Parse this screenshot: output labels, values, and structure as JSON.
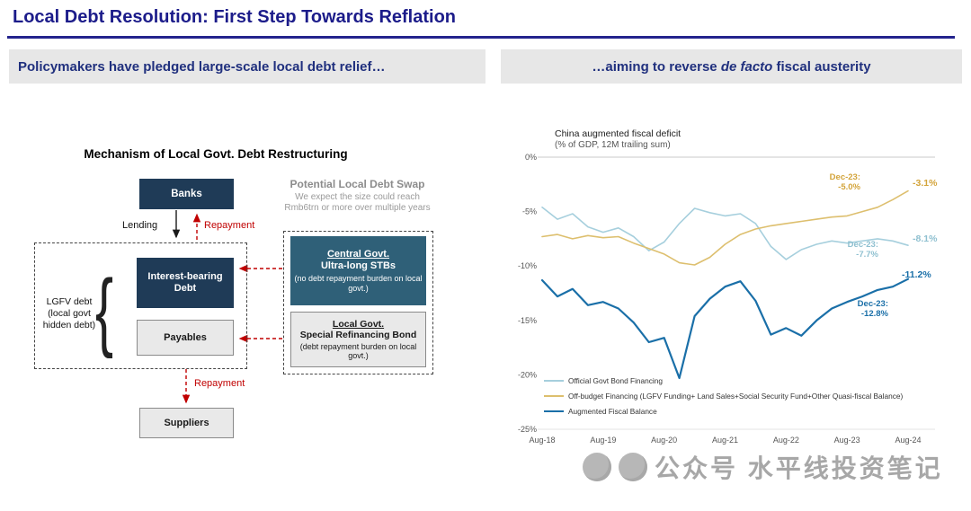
{
  "slide": {
    "title": "Local Debt Resolution: First Step Towards Reflation",
    "left_header": "Policymakers have pledged large-scale local debt relief…",
    "right_header": {
      "prefix": "…aiming to reverse ",
      "italic": "de facto",
      "suffix": " fiscal austerity"
    }
  },
  "diagram": {
    "title": "Mechanism of Local Govt. Debt Restructuring",
    "banks_label": "Banks",
    "lending_label": "Lending",
    "repayment_top_label": "Repayment",
    "interest_bearing_line1": "Interest-bearing",
    "interest_bearing_line2": "Debt",
    "payables_label": "Payables",
    "lgfv_line1": "LGFV debt",
    "lgfv_line2": "(local govt",
    "lgfv_line3": "hidden debt)",
    "repayment_bottom_label": "Repayment",
    "suppliers_label": "Suppliers",
    "swap_title": "Potential Local Debt Swap",
    "swap_note_line1": "We expect the size could reach",
    "swap_note_line2": "Rmb6trn or more over multiple years",
    "central_box": {
      "title": "Central Govt.",
      "subtitle": "Ultra-long STBs",
      "note": "(no debt repayment burden on local govt.)"
    },
    "local_box": {
      "title": "Local Govt.",
      "subtitle": "Special Refinancing Bond",
      "note": "(debt repayment burden on local govt.)"
    }
  },
  "chart": {
    "title_line1": "China augmented fiscal deficit",
    "title_line2": "(% of GDP, 12M trailing sum)",
    "annotations": {
      "offbudget_dec_label": "Dec-23:",
      "offbudget_dec_value": "-5.0%",
      "offbudget_end_value": "-3.1%",
      "official_dec_label": "Dec-23:",
      "official_dec_value": "-7.7%",
      "official_end_value": "-8.1%",
      "augmented_dec_label": "Dec-23:",
      "augmented_dec_value": "-12.8%",
      "augmented_end_value": "-11.2%"
    }
  },
  "chart_data": {
    "type": "line",
    "title": "China augmented fiscal deficit (% of GDP, 12M trailing sum)",
    "xlabel": "",
    "ylabel": "% of GDP, 12M trailing sum",
    "ylim": [
      -25,
      0
    ],
    "yticks": [
      0,
      -5,
      -10,
      -15,
      -20,
      -25
    ],
    "ytick_labels": [
      "0%",
      "-5%",
      "-10%",
      "-15%",
      "-20%",
      "-25%"
    ],
    "xtick_labels": [
      "Aug-18",
      "Aug-19",
      "Aug-20",
      "Aug-21",
      "Aug-22",
      "Aug-23",
      "Aug-24"
    ],
    "x_unit": "years since Aug-18, quarterly",
    "grid": false,
    "legend_position": "bottom-left inside plot",
    "x": [
      0,
      0.25,
      0.5,
      0.75,
      1,
      1.25,
      1.5,
      1.75,
      2,
      2.25,
      2.5,
      2.75,
      3,
      3.25,
      3.5,
      3.75,
      4,
      4.25,
      4.5,
      4.75,
      5,
      5.25,
      5.5,
      5.75,
      6
    ],
    "series": [
      {
        "name": "Official Govt Bond Financing",
        "color": "#a6cfdd",
        "width": 1.6,
        "values": [
          -4.6,
          -5.7,
          -5.2,
          -6.4,
          -6.9,
          -6.5,
          -7.3,
          -8.6,
          -7.8,
          -6.1,
          -4.7,
          -5.1,
          -5.4,
          -5.2,
          -6.1,
          -8.2,
          -9.4,
          -8.5,
          -8.0,
          -7.7,
          -7.9,
          -7.7,
          -7.5,
          -7.7,
          -8.1
        ]
      },
      {
        "name": "Off-budget Financing (LGFV Funding+ Land Sales+Social Security Fund+Other Quasi-fiscal Balance)",
        "color": "#ddbf6e",
        "width": 1.6,
        "values": [
          -7.3,
          -7.1,
          -7.5,
          -7.2,
          -7.4,
          -7.3,
          -7.9,
          -8.4,
          -8.9,
          -9.7,
          -9.9,
          -9.2,
          -8.0,
          -7.1,
          -6.6,
          -6.3,
          -6.1,
          -5.9,
          -5.7,
          -5.5,
          -5.4,
          -5.0,
          -4.6,
          -3.9,
          -3.1
        ]
      },
      {
        "name": "Augmented Fiscal Balance",
        "color": "#1a6fa8",
        "width": 2.2,
        "values": [
          -11.3,
          -12.8,
          -12.1,
          -13.6,
          -13.3,
          -13.9,
          -15.2,
          -17.0,
          -16.6,
          -20.3,
          -14.6,
          -13.0,
          -11.9,
          -11.4,
          -13.2,
          -16.3,
          -15.7,
          -16.4,
          -15.0,
          -13.9,
          -13.3,
          -12.8,
          -12.2,
          -11.9,
          -11.2
        ]
      }
    ],
    "key_points": {
      "official_dec23": -7.7,
      "official_aug24": -8.1,
      "offbudget_dec23": -5.0,
      "offbudget_aug24": -3.1,
      "augmented_dec23": -12.8,
      "augmented_aug24": -11.2
    }
  },
  "watermark": {
    "text": "公众号 水平线投资笔记"
  },
  "colors": {
    "title_navy": "#1c1c8a",
    "header_bg": "#e7e7e7",
    "header_text": "#20307e",
    "box_navy": "#1f3b57",
    "box_steel": "#2f6078",
    "box_grey": "#e9e9e9",
    "arrow_red": "#c00000",
    "line_official": "#a6cfdd",
    "line_offbudget": "#ddbf6e",
    "line_augmented": "#1a6fa8"
  }
}
